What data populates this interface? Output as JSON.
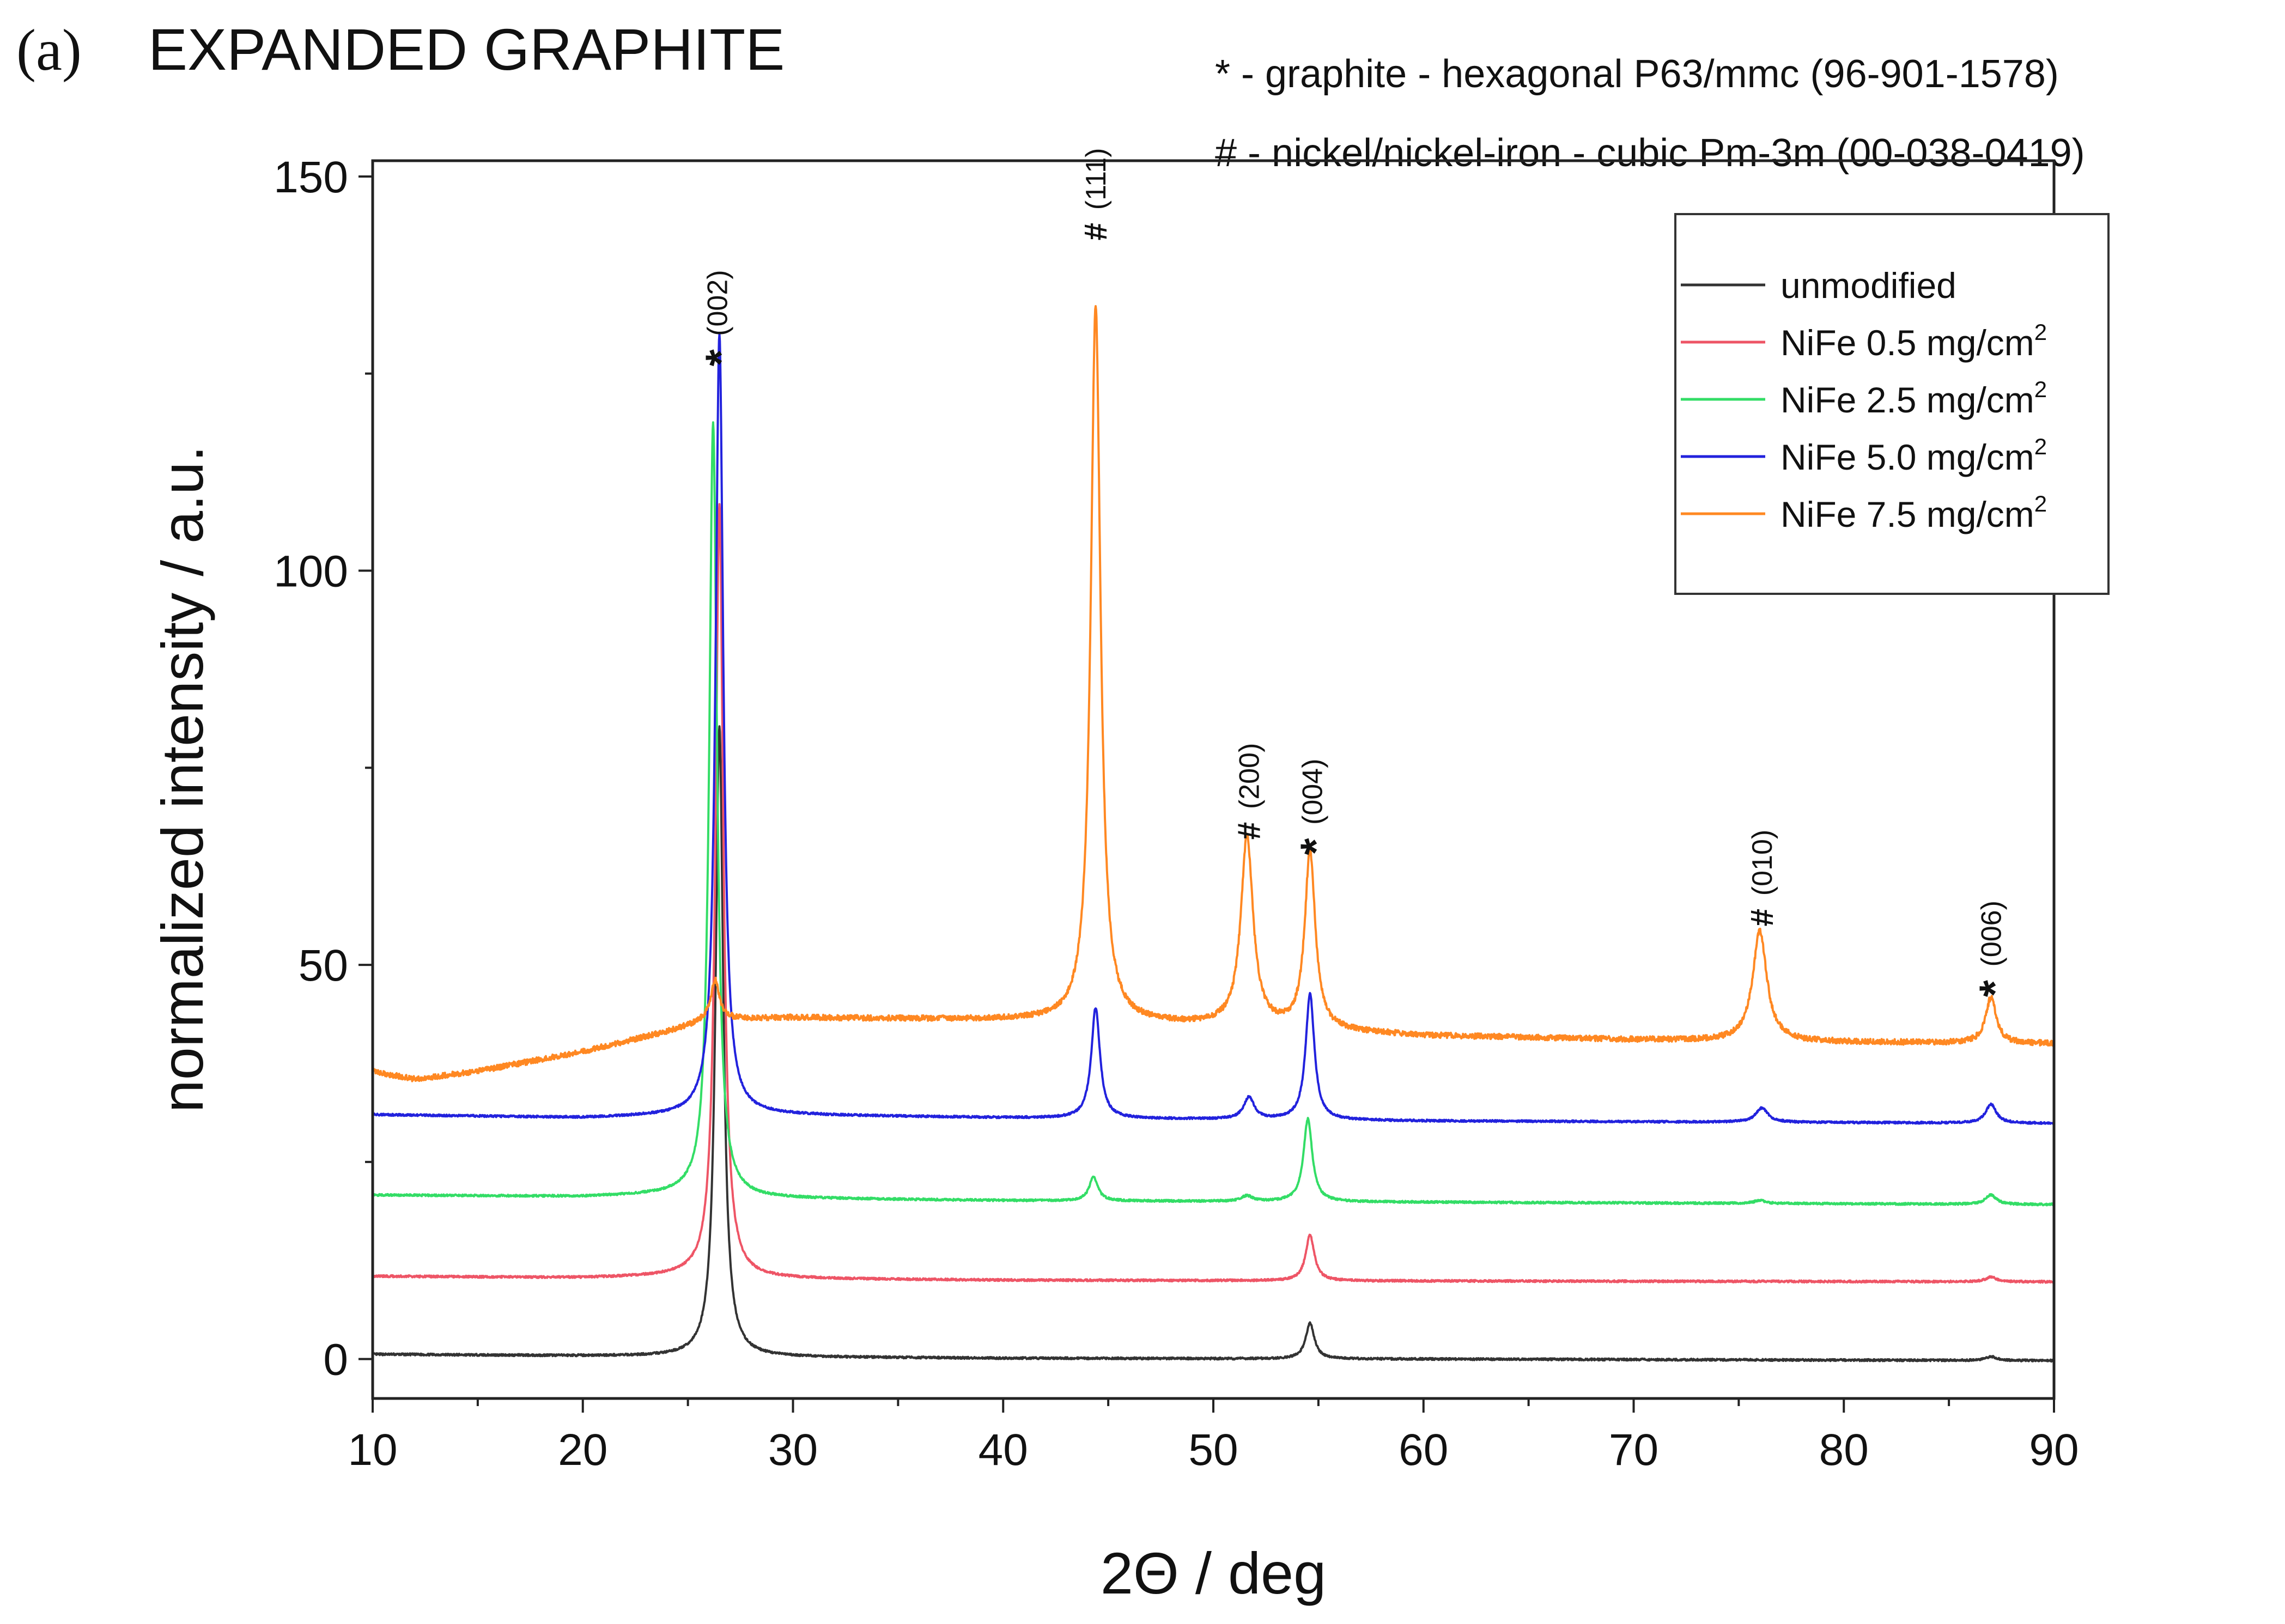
{
  "chart_data": {
    "type": "line",
    "panel_label": "(a)",
    "title": "EXPANDED GRAPHITE",
    "xlabel": "2Θ / deg",
    "ylabel": "normalized intensity / a.u.",
    "xlim": [
      10,
      90
    ],
    "ylim": [
      -5,
      152
    ],
    "xticks": [
      10,
      20,
      30,
      40,
      50,
      60,
      70,
      80,
      90
    ],
    "yticks": [
      0,
      50,
      100,
      150
    ],
    "grid": false,
    "legend_position": "top-right",
    "phase_notes": [
      "* - graphite - hexagonal P63/mmc (96-901-1578)",
      "# - nickel/nickel-iron - cubic Pm-3m (00-038-0419)"
    ],
    "series": [
      {
        "name": "unmodified",
        "name_main": "unmodified",
        "name_sup": "",
        "color": "#333333",
        "baseline": [
          [
            10,
            0.6
          ],
          [
            20,
            0.4
          ],
          [
            25,
            0.3
          ],
          [
            40,
            0.1
          ],
          [
            60,
            0.0
          ],
          [
            90,
            -0.2
          ]
        ],
        "peaks": [
          {
            "x": 26.5,
            "h": 80.0,
            "w": 0.22
          },
          {
            "x": 54.6,
            "h": 4.5,
            "w": 0.25
          },
          {
            "x": 87.0,
            "h": 0.5,
            "w": 0.3
          }
        ]
      },
      {
        "name": "NiFe 0.5 mg/cm2",
        "name_main": "NiFe 0.5 mg/cm",
        "name_sup": "2",
        "color": "#ee5566",
        "baseline": [
          [
            10,
            10.5
          ],
          [
            20,
            10.3
          ],
          [
            25,
            10.5
          ],
          [
            28,
            10.2
          ],
          [
            40,
            10.0
          ],
          [
            60,
            9.9
          ],
          [
            90,
            9.8
          ]
        ],
        "peaks": [
          {
            "x": 26.5,
            "h": 98.0,
            "w": 0.22
          },
          {
            "x": 54.6,
            "h": 5.8,
            "w": 0.25
          },
          {
            "x": 87.0,
            "h": 0.6,
            "w": 0.3
          }
        ]
      },
      {
        "name": "NiFe 2.5 mg/cm2",
        "name_main": "NiFe 2.5 mg/cm",
        "name_sup": "2",
        "color": "#33dd66",
        "baseline": [
          [
            10,
            20.8
          ],
          [
            20,
            20.6
          ],
          [
            25,
            20.9
          ],
          [
            28,
            20.4
          ],
          [
            40,
            20.1
          ],
          [
            60,
            19.9
          ],
          [
            90,
            19.6
          ]
        ],
        "peaks": [
          {
            "x": 26.2,
            "h": 98.0,
            "w": 0.22
          },
          {
            "x": 44.3,
            "h": 3.0,
            "w": 0.25
          },
          {
            "x": 51.6,
            "h": 0.7,
            "w": 0.3
          },
          {
            "x": 54.5,
            "h": 10.5,
            "w": 0.25
          },
          {
            "x": 76.0,
            "h": 0.4,
            "w": 0.3
          },
          {
            "x": 87.0,
            "h": 1.2,
            "w": 0.3
          }
        ]
      },
      {
        "name": "NiFe 5.0 mg/cm2",
        "name_main": "NiFe 5.0 mg/cm",
        "name_sup": "2",
        "color": "#2222dd",
        "baseline": [
          [
            10,
            31.0
          ],
          [
            20,
            30.6
          ],
          [
            25,
            30.9
          ],
          [
            28,
            31.0
          ],
          [
            40,
            30.6
          ],
          [
            60,
            30.2
          ],
          [
            90,
            29.9
          ]
        ],
        "peaks": [
          {
            "x": 26.5,
            "h": 99.0,
            "w": 0.22
          },
          {
            "x": 44.4,
            "h": 14.0,
            "w": 0.25
          },
          {
            "x": 51.7,
            "h": 2.8,
            "w": 0.3
          },
          {
            "x": 54.6,
            "h": 16.0,
            "w": 0.25
          },
          {
            "x": 76.1,
            "h": 1.8,
            "w": 0.35
          },
          {
            "x": 87.0,
            "h": 2.4,
            "w": 0.3
          }
        ]
      },
      {
        "name": "NiFe 7.5 mg/cm2",
        "name_main": "NiFe 7.5 mg/cm",
        "name_sup": "2",
        "color": "#ff8822",
        "baseline": [
          [
            10,
            36.5
          ],
          [
            12,
            35.5
          ],
          [
            15,
            36.5
          ],
          [
            20,
            39.0
          ],
          [
            24,
            41.5
          ],
          [
            26,
            43.0
          ],
          [
            30,
            43.3
          ],
          [
            40,
            43.0
          ],
          [
            50,
            42.3
          ],
          [
            60,
            41.0
          ],
          [
            70,
            40.5
          ],
          [
            80,
            40.2
          ],
          [
            90,
            40.0
          ]
        ],
        "peaks": [
          {
            "x": 26.3,
            "h": 5.0,
            "w": 0.25
          },
          {
            "x": 44.4,
            "h": 91.0,
            "w": 0.28
          },
          {
            "x": 51.6,
            "h": 24.0,
            "w": 0.35
          },
          {
            "x": 54.6,
            "h": 22.5,
            "w": 0.3
          },
          {
            "x": 76.0,
            "h": 14.0,
            "w": 0.4
          },
          {
            "x": 87.0,
            "h": 5.8,
            "w": 0.3
          }
        ]
      }
    ],
    "annotations": [
      {
        "symbol": "*",
        "hkl": "(002)",
        "x": 26.4,
        "y": 127
      },
      {
        "symbol": "#",
        "hkl": "(111)",
        "x": 44.4,
        "y": 143
      },
      {
        "symbol": "#",
        "hkl": "(200)",
        "x": 51.7,
        "y": 67
      },
      {
        "symbol": "*",
        "hkl": "(004)",
        "x": 54.7,
        "y": 65
      },
      {
        "symbol": "#",
        "hkl": "(010)",
        "x": 76.1,
        "y": 56
      },
      {
        "symbol": "*",
        "hkl": "(006)",
        "x": 87.0,
        "y": 47
      }
    ]
  }
}
